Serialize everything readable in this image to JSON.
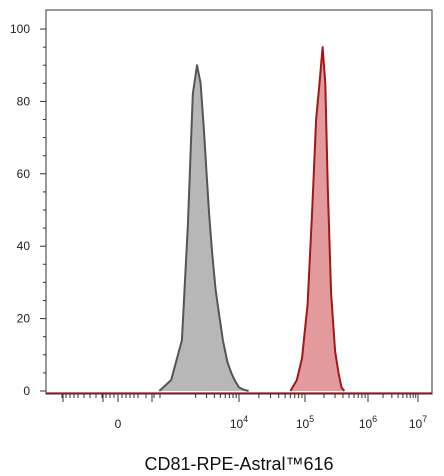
{
  "chart_data": {
    "type": "area",
    "xlabel": "CD81-RPE-Astral™616",
    "ylabel": "",
    "ylim": [
      0,
      100
    ],
    "x_scale": "biexponential (log above ~10^3)",
    "y_ticks": [
      "0",
      "20",
      "40",
      "60",
      "80",
      "100"
    ],
    "x_ticks": [
      {
        "base": "0",
        "exp": ""
      },
      {
        "base": "10",
        "exp": "4"
      },
      {
        "base": "10",
        "exp": "5"
      },
      {
        "base": "10",
        "exp": "6"
      },
      {
        "base": "10",
        "exp": "7"
      }
    ],
    "grid": false,
    "series": [
      {
        "fill": "#b7b7b7",
        "stroke": "#555555",
        "x": [
          700,
          900,
          1200,
          1500,
          1800,
          2100,
          2400,
          2700,
          3000,
          3300,
          3700,
          4200,
          4800,
          5500,
          6500,
          7500,
          8500,
          10000,
          12000,
          14000
        ],
        "y": [
          0,
          3,
          14,
          46,
          82,
          90,
          85,
          73,
          60,
          49,
          38,
          28,
          21,
          14,
          8,
          5,
          3,
          1,
          0.3,
          0
        ]
      },
      {
        "fill": "#e29a9c",
        "stroke": "#a01818",
        "x": [
          60000,
          75000,
          90000,
          110000,
          130000,
          150000,
          170000,
          190000,
          210000,
          230000,
          260000,
          300000,
          340000,
          380000,
          420000
        ],
        "y": [
          0,
          3,
          9,
          24,
          50,
          75,
          85,
          95,
          85,
          56,
          27,
          11,
          5,
          1,
          0
        ]
      }
    ]
  }
}
